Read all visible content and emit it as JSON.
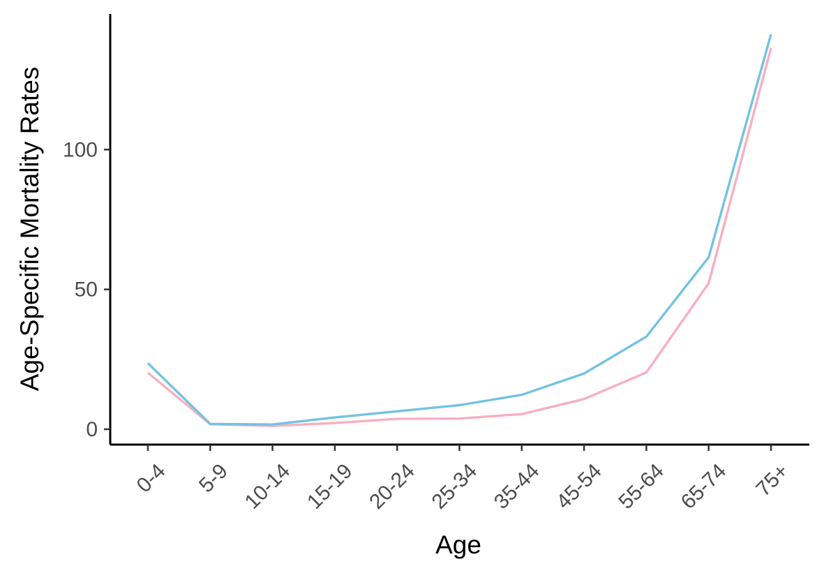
{
  "chart_data": {
    "type": "line",
    "title": "",
    "xlabel": "Age",
    "ylabel": "Age-Specific Mortality Rates",
    "categories": [
      "0-4",
      "5-9",
      "10-14",
      "15-19",
      "20-24",
      "25-34",
      "35-44",
      "45-54",
      "55-64",
      "65-74",
      "75+"
    ],
    "y_ticks": [
      0,
      50,
      100
    ],
    "y_tick_labels": [
      "0",
      "50",
      "100"
    ],
    "ylim": [
      -5.5,
      148.5
    ],
    "grid": false,
    "legend": "none",
    "series": [
      {
        "color": "#F8AFC1",
        "values": [
          20.2,
          1.8,
          1.2,
          2.2,
          3.7,
          3.8,
          5.4,
          10.8,
          20.3,
          52.2,
          136.3
        ]
      },
      {
        "color": "#74C2E1",
        "values": [
          23.6,
          1.9,
          1.7,
          4.2,
          6.4,
          8.6,
          12.3,
          19.9,
          33.1,
          61.5,
          141.2
        ]
      }
    ]
  }
}
